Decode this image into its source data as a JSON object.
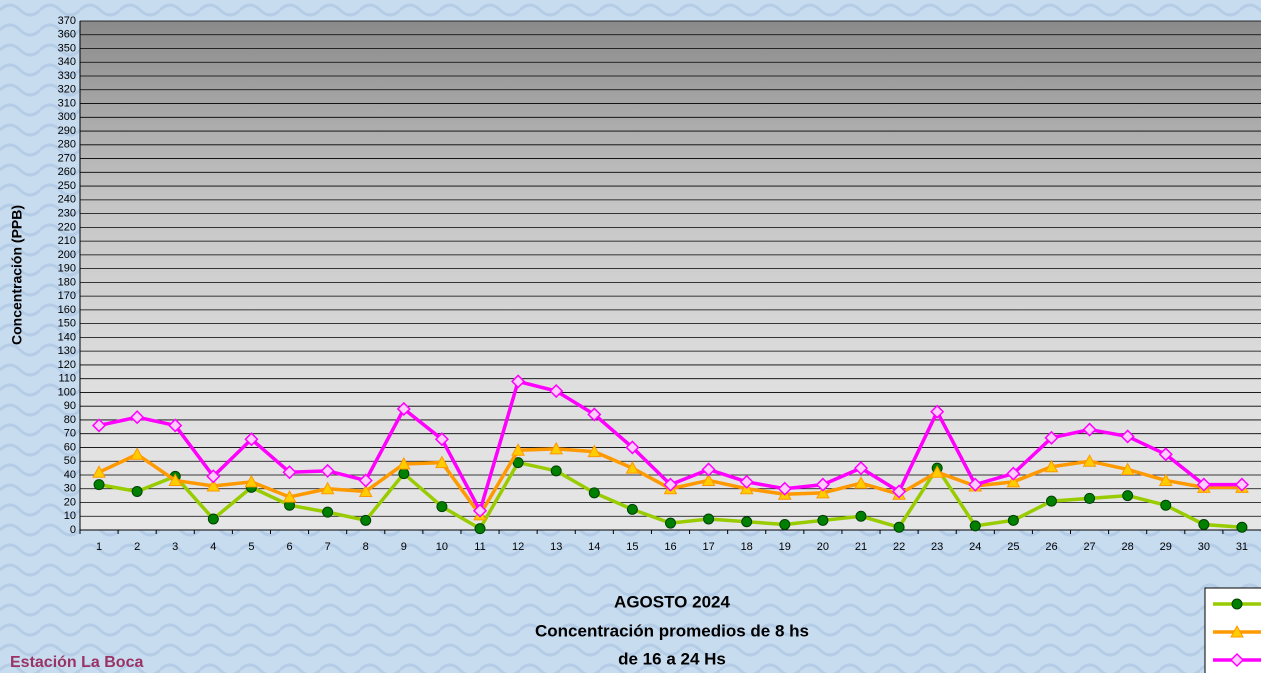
{
  "chart_data": {
    "type": "line",
    "title": "AGOSTO 2024",
    "subtitle": [
      "Concentración promedios de 8 hs",
      "de 16 a 24 Hs"
    ],
    "station": "Estación La Boca",
    "y_label": "Concentración  (PPB)",
    "categories": [
      "1",
      "2",
      "3",
      "4",
      "5",
      "6",
      "7",
      "8",
      "9",
      "10",
      "11",
      "12",
      "13",
      "14",
      "15",
      "16",
      "17",
      "18",
      "19",
      "20",
      "21",
      "22",
      "23",
      "24",
      "25",
      "26",
      "27",
      "28",
      "29",
      "30",
      "31"
    ],
    "series": [
      {
        "color": "#99cc00",
        "values": [
          33,
          28,
          39,
          8,
          31,
          18,
          13,
          7,
          41,
          17,
          1,
          49,
          43,
          27,
          15,
          5,
          8,
          6,
          4,
          7,
          10,
          2,
          45,
          3,
          7,
          21,
          23,
          25,
          18,
          4,
          2
        ]
      },
      {
        "color": "#ff9900",
        "values": [
          42,
          55,
          36,
          32,
          35,
          24,
          30,
          28,
          48,
          49,
          11,
          58,
          59,
          57,
          45,
          30,
          36,
          30,
          26,
          27,
          34,
          26,
          42,
          32,
          35,
          46,
          50,
          44,
          36,
          31,
          31
        ]
      },
      {
        "color": "#ff00ff",
        "values": [
          76,
          82,
          76,
          39,
          66,
          42,
          43,
          36,
          88,
          66,
          14,
          108,
          101,
          84,
          60,
          33,
          44,
          35,
          30,
          33,
          45,
          28,
          86,
          33,
          41,
          67,
          73,
          68,
          55,
          33,
          33
        ]
      }
    ],
    "ylim": [
      0,
      370
    ],
    "yticks": [
      0,
      10,
      20,
      30,
      40,
      50,
      60,
      70,
      80,
      90,
      100,
      110,
      120,
      130,
      140,
      150,
      160,
      170,
      180,
      190,
      200,
      210,
      220,
      230,
      240,
      250,
      260,
      270,
      280,
      290,
      300,
      310,
      320,
      330,
      340,
      350,
      360,
      370
    ],
    "grid": true
  }
}
